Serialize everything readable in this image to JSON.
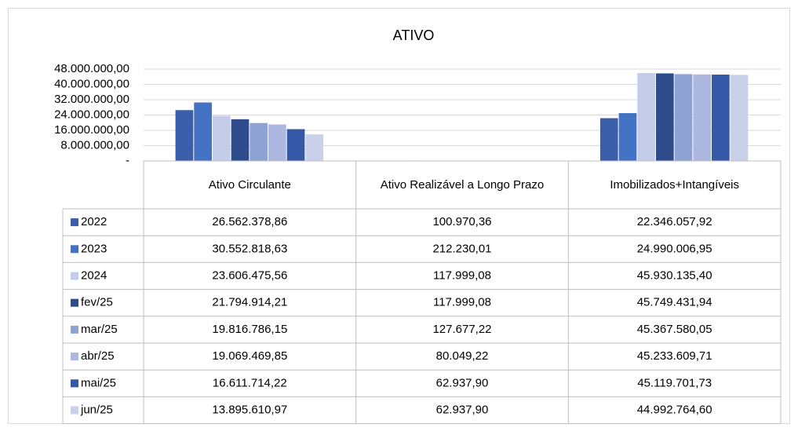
{
  "chart_data": {
    "type": "bar",
    "title": "ATIVO",
    "categories": [
      "Ativo Circulante",
      "Ativo Realizável a Longo Prazo",
      "Imobilizados+Intangíveis"
    ],
    "ylim": [
      0,
      48000000
    ],
    "yticks": [
      {
        "value": 0,
        "label": "-"
      },
      {
        "value": 8000000,
        "label": "8.000.000,00"
      },
      {
        "value": 16000000,
        "label": "16.000.000,00"
      },
      {
        "value": 24000000,
        "label": "24.000.000,00"
      },
      {
        "value": 32000000,
        "label": "32.000.000,00"
      },
      {
        "value": 40000000,
        "label": "40.000.000,00"
      },
      {
        "value": 48000000,
        "label": "48.000.000,00"
      }
    ],
    "grid": true,
    "series": [
      {
        "name": "2022",
        "color": "#3a5eaa",
        "values": [
          26562378.86,
          100970.36,
          22346057.92
        ],
        "value_labels": [
          "26.562.378,86",
          "100.970,36",
          "22.346.057,92"
        ]
      },
      {
        "name": "2023",
        "color": "#4472c4",
        "values": [
          30552818.63,
          212230.01,
          24990006.95
        ],
        "value_labels": [
          "30.552.818,63",
          "212.230,01",
          "24.990.006,95"
        ]
      },
      {
        "name": "2024",
        "color": "#c3cce8",
        "values": [
          23606475.56,
          117999.08,
          45930135.4
        ],
        "value_labels": [
          "23.606.475,56",
          "117.999,08",
          "45.930.135,40"
        ]
      },
      {
        "name": "fev/25",
        "color": "#2e4c8c",
        "values": [
          21794914.21,
          117999.08,
          45749431.94
        ],
        "value_labels": [
          "21.794.914,21",
          "117.999,08",
          "45.749.431,94"
        ]
      },
      {
        "name": "mar/25",
        "color": "#8fa2d4",
        "values": [
          19816786.15,
          127677.22,
          45367580.05
        ],
        "value_labels": [
          "19.816.786,15",
          "127.677,22",
          "45.367.580,05"
        ]
      },
      {
        "name": "abr/25",
        "color": "#adb8e0",
        "values": [
          19069469.85,
          80049.22,
          45233609.71
        ],
        "value_labels": [
          "19.069.469,85",
          "80.049,22",
          "45.233.609,71"
        ]
      },
      {
        "name": "mai/25",
        "color": "#3559a6",
        "values": [
          16611714.22,
          62937.9,
          45119701.73
        ],
        "value_labels": [
          "16.611.714,22",
          "62.937,90",
          "45.119.701,73"
        ]
      },
      {
        "name": "jun/25",
        "color": "#c8d0ea",
        "values": [
          13895610.97,
          62937.9,
          44992764.6
        ],
        "value_labels": [
          "13.895.610,97",
          "62.937,90",
          "44.992.764,60"
        ]
      }
    ]
  }
}
